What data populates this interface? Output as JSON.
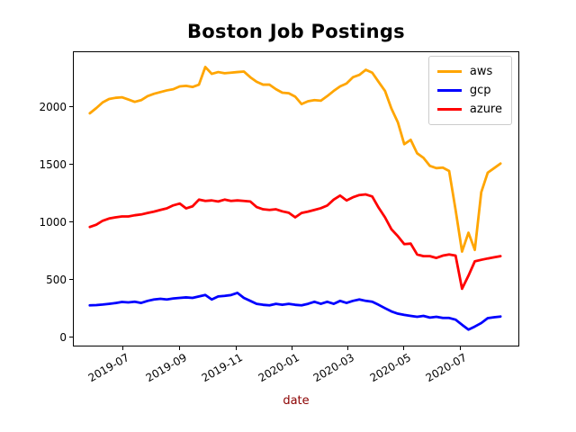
{
  "chart_data": {
    "type": "line",
    "title": "Boston Job Postings",
    "xlabel": "date",
    "ylabel": "",
    "xlabel_color": "#8b0000",
    "grid": false,
    "legend_position": "upper right",
    "line_width": 2.8,
    "ylim": [
      -82,
      2484
    ],
    "xlim": [
      "2019-05-08",
      "2020-09-03"
    ],
    "yticks": [
      0,
      500,
      1000,
      1500,
      2000
    ],
    "xticks": [
      {
        "label": "2019-07",
        "date": "2019-07-01"
      },
      {
        "label": "2019-09",
        "date": "2019-09-01"
      },
      {
        "label": "2019-11",
        "date": "2019-11-01"
      },
      {
        "label": "2020-01",
        "date": "2020-01-01"
      },
      {
        "label": "2020-03",
        "date": "2020-03-01"
      },
      {
        "label": "2020-05",
        "date": "2020-05-01"
      },
      {
        "label": "2020-07",
        "date": "2020-07-01"
      }
    ],
    "x": [
      "2019-05-25",
      "2019-06-01",
      "2019-06-08",
      "2019-06-15",
      "2019-06-22",
      "2019-06-29",
      "2019-07-06",
      "2019-07-13",
      "2019-07-20",
      "2019-07-27",
      "2019-08-03",
      "2019-08-10",
      "2019-08-17",
      "2019-08-24",
      "2019-08-31",
      "2019-09-07",
      "2019-09-14",
      "2019-09-21",
      "2019-09-28",
      "2019-10-05",
      "2019-10-12",
      "2019-10-19",
      "2019-10-26",
      "2019-11-02",
      "2019-11-09",
      "2019-11-16",
      "2019-11-23",
      "2019-11-30",
      "2019-12-07",
      "2019-12-14",
      "2019-12-21",
      "2019-12-28",
      "2020-01-04",
      "2020-01-11",
      "2020-01-18",
      "2020-01-25",
      "2020-02-01",
      "2020-02-08",
      "2020-02-15",
      "2020-02-22",
      "2020-02-29",
      "2020-03-07",
      "2020-03-14",
      "2020-03-21",
      "2020-03-28",
      "2020-04-04",
      "2020-04-11",
      "2020-04-18",
      "2020-04-25",
      "2020-05-02",
      "2020-05-09",
      "2020-05-16",
      "2020-05-23",
      "2020-05-30",
      "2020-06-06",
      "2020-06-13",
      "2020-06-20",
      "2020-06-27",
      "2020-07-04",
      "2020-07-11",
      "2020-07-18",
      "2020-07-25",
      "2020-08-01",
      "2020-08-08",
      "2020-08-15"
    ],
    "series": [
      {
        "name": "aws",
        "color": "#ffa500",
        "values": [
          1950,
          1995,
          2045,
          2075,
          2085,
          2090,
          2070,
          2050,
          2065,
          2100,
          2120,
          2135,
          2150,
          2160,
          2185,
          2190,
          2180,
          2200,
          2355,
          2295,
          2310,
          2300,
          2305,
          2310,
          2315,
          2265,
          2225,
          2200,
          2200,
          2160,
          2130,
          2125,
          2095,
          2030,
          2055,
          2065,
          2060,
          2100,
          2145,
          2185,
          2210,
          2265,
          2285,
          2330,
          2305,
          2225,
          2145,
          1990,
          1870,
          1680,
          1717,
          1600,
          1560,
          1490,
          1470,
          1475,
          1445,
          1105,
          740,
          905,
          755,
          1260,
          1430,
          1470,
          1510
        ]
      },
      {
        "name": "gcp",
        "color": "#0000ff",
        "values": [
          270,
          272,
          277,
          283,
          290,
          300,
          296,
          301,
          291,
          309,
          322,
          327,
          322,
          330,
          335,
          340,
          335,
          348,
          361,
          322,
          348,
          353,
          360,
          379,
          335,
          309,
          283,
          275,
          270,
          283,
          275,
          283,
          275,
          270,
          283,
          301,
          283,
          301,
          283,
          309,
          291,
          309,
          322,
          309,
          301,
          275,
          245,
          217,
          197,
          186,
          178,
          170,
          178,
          163,
          170,
          160,
          160,
          145,
          100,
          58,
          85,
          115,
          158,
          166,
          172
        ]
      },
      {
        "name": "azure",
        "color": "#ff0000",
        "values": [
          955,
          975,
          1010,
          1030,
          1040,
          1048,
          1048,
          1058,
          1065,
          1078,
          1090,
          1105,
          1118,
          1145,
          1160,
          1118,
          1136,
          1195,
          1183,
          1188,
          1178,
          1195,
          1183,
          1188,
          1183,
          1178,
          1130,
          1110,
          1105,
          1110,
          1092,
          1080,
          1040,
          1078,
          1090,
          1105,
          1120,
          1143,
          1195,
          1230,
          1188,
          1215,
          1235,
          1240,
          1222,
          1125,
          1040,
          935,
          875,
          805,
          810,
          715,
          700,
          700,
          685,
          705,
          715,
          705,
          415,
          530,
          655,
          668,
          680,
          690,
          700
        ]
      }
    ]
  }
}
